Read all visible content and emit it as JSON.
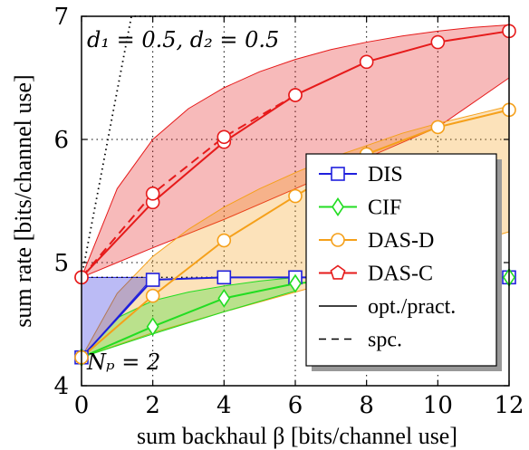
{
  "chart_data": {
    "type": "line",
    "xlabel": "sum backhaul β [bits/channel use]",
    "ylabel": "sum rate [bits/channel use]",
    "xlim": [
      0,
      12
    ],
    "ylim": [
      4,
      7
    ],
    "xticks": [
      0,
      2,
      4,
      6,
      8,
      10,
      12
    ],
    "yticks": [
      4,
      5,
      6,
      7
    ],
    "xtick_labels": [
      "0",
      "2",
      "4",
      "6",
      "8",
      "10",
      "12"
    ],
    "ytick_labels": [
      "4",
      "5",
      "6",
      "7"
    ],
    "grid": true,
    "annotations": [
      {
        "text": "d₁ = 0.5, d₂ = 0.5",
        "x": 0.3,
        "y": 6.75
      },
      {
        "text": "Nₚ = 2",
        "x": 0.3,
        "y": 4.2
      }
    ],
    "legend": {
      "placement": "center-right",
      "entries": [
        {
          "label": "DIS",
          "marker": "square",
          "color": "#1f1fdd"
        },
        {
          "label": "CIF",
          "marker": "diamond",
          "color": "#22dd22"
        },
        {
          "label": "DAS-D",
          "marker": "circle",
          "color": "#f5a01a"
        },
        {
          "label": "DAS-C",
          "marker": "pentagon",
          "color": "#e61a1a"
        },
        {
          "label": "opt./pract.",
          "style": "solid"
        },
        {
          "label": "spc.",
          "style": "dashed"
        }
      ]
    },
    "reference_line": {
      "style": "dotted",
      "x": [
        0,
        1.4,
        12
      ],
      "y": [
        4.88,
        7.0,
        7.0
      ]
    },
    "reference_hline": {
      "style": "dotted",
      "y": 4.88
    },
    "bands": [
      {
        "name": "DAS-C",
        "color": "#e61a1a",
        "upper": {
          "x": [
            0,
            1,
            2,
            3,
            4,
            5,
            6,
            7,
            8,
            9,
            10,
            11,
            12
          ],
          "y": [
            4.88,
            5.6,
            6.0,
            6.25,
            6.42,
            6.55,
            6.65,
            6.73,
            6.79,
            6.84,
            6.88,
            6.91,
            6.93
          ]
        },
        "lower": {
          "x": [
            0,
            2,
            4,
            6,
            8,
            10,
            12
          ],
          "y": [
            4.88,
            5.12,
            5.35,
            5.6,
            5.85,
            6.1,
            6.5
          ]
        }
      },
      {
        "name": "DAS-D",
        "color": "#f5a01a",
        "upper": {
          "x": [
            0,
            1,
            2,
            3,
            4,
            5,
            6,
            7,
            8,
            9,
            10,
            11,
            12
          ],
          "y": [
            4.23,
            4.75,
            5.05,
            5.27,
            5.45,
            5.6,
            5.73,
            5.85,
            5.95,
            6.05,
            6.13,
            6.2,
            6.27
          ]
        },
        "lower": {
          "x": [
            0,
            2,
            4,
            6,
            8,
            10,
            12
          ],
          "y": [
            4.23,
            4.43,
            4.6,
            4.76,
            4.92,
            5.08,
            5.25
          ]
        }
      },
      {
        "name": "CIF",
        "color": "#22dd22",
        "upper": {
          "x": [
            0,
            1,
            2,
            3,
            4,
            5,
            6
          ],
          "y": [
            4.23,
            4.55,
            4.69,
            4.76,
            4.81,
            4.85,
            4.88
          ]
        },
        "lower": {
          "x": [
            0,
            2,
            4,
            6
          ],
          "y": [
            4.23,
            4.42,
            4.6,
            4.77
          ]
        }
      },
      {
        "name": "DIS",
        "color": "#1f1fdd",
        "upper": {
          "x": [
            0,
            2
          ],
          "y": [
            4.88,
            4.88
          ]
        },
        "lower": {
          "x": [
            0,
            2
          ],
          "y": [
            4.23,
            4.88
          ]
        }
      }
    ],
    "series": [
      {
        "name": "DIS",
        "style": "solid",
        "marker": "square",
        "color": "#1f1fdd",
        "x": [
          0,
          2,
          4,
          6,
          8,
          10,
          12
        ],
        "y": [
          4.23,
          4.86,
          4.88,
          4.88,
          4.88,
          4.88,
          4.88
        ]
      },
      {
        "name": "CIF",
        "style": "solid",
        "marker": "diamond",
        "color": "#22dd22",
        "x": [
          0,
          2,
          4,
          6,
          8,
          10,
          12
        ],
        "y": [
          4.23,
          4.48,
          4.71,
          4.83,
          4.88,
          4.88,
          4.88
        ]
      },
      {
        "name": "DAS-D",
        "style": "solid",
        "marker": "circle",
        "color": "#f5a01a",
        "x": [
          0,
          2,
          4,
          6,
          8,
          10,
          12
        ],
        "y": [
          4.23,
          4.73,
          5.18,
          5.54,
          5.88,
          6.1,
          6.24
        ]
      },
      {
        "name": "DAS-C",
        "style": "solid",
        "marker": "circle",
        "color": "#e61a1a",
        "x": [
          0,
          2,
          4,
          6,
          8,
          10,
          12
        ],
        "y": [
          4.88,
          5.49,
          5.98,
          6.36,
          6.63,
          6.79,
          6.88
        ]
      },
      {
        "name": "DAS-C",
        "style": "dashed",
        "marker": "circle",
        "color": "#e61a1a",
        "x": [
          0,
          2,
          4,
          6
        ],
        "y": [
          4.88,
          5.56,
          6.02,
          6.36
        ]
      }
    ]
  }
}
